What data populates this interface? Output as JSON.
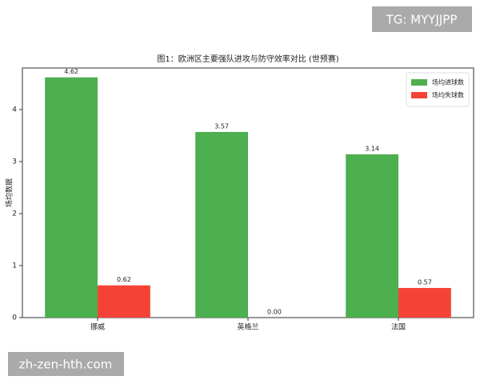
{
  "chart_data": {
    "type": "bar",
    "title": "图1：欧洲区主要强队进攻与防守效率对比 (世预赛)",
    "ylabel": "场均数据",
    "categories": [
      "挪威",
      "英格兰",
      "法国"
    ],
    "series": [
      {
        "name": "场均进球数",
        "color": "#4caf50",
        "values": [
          4.62,
          3.57,
          3.14
        ],
        "value_labels": [
          "4.62",
          "3.57",
          "3.14"
        ]
      },
      {
        "name": "场均失球数",
        "color": "#f44336",
        "values": [
          0.62,
          0,
          0.57
        ],
        "value_labels": [
          "0.62",
          "0.00",
          "0.57"
        ]
      }
    ],
    "ylim": [
      0,
      4.8
    ],
    "yticks": [
      0,
      1,
      2,
      3,
      4
    ],
    "grid": false,
    "legend": "upper right"
  },
  "watermarks": [
    "TG: MYYJJPP",
    "zh-zen-hth.com"
  ]
}
